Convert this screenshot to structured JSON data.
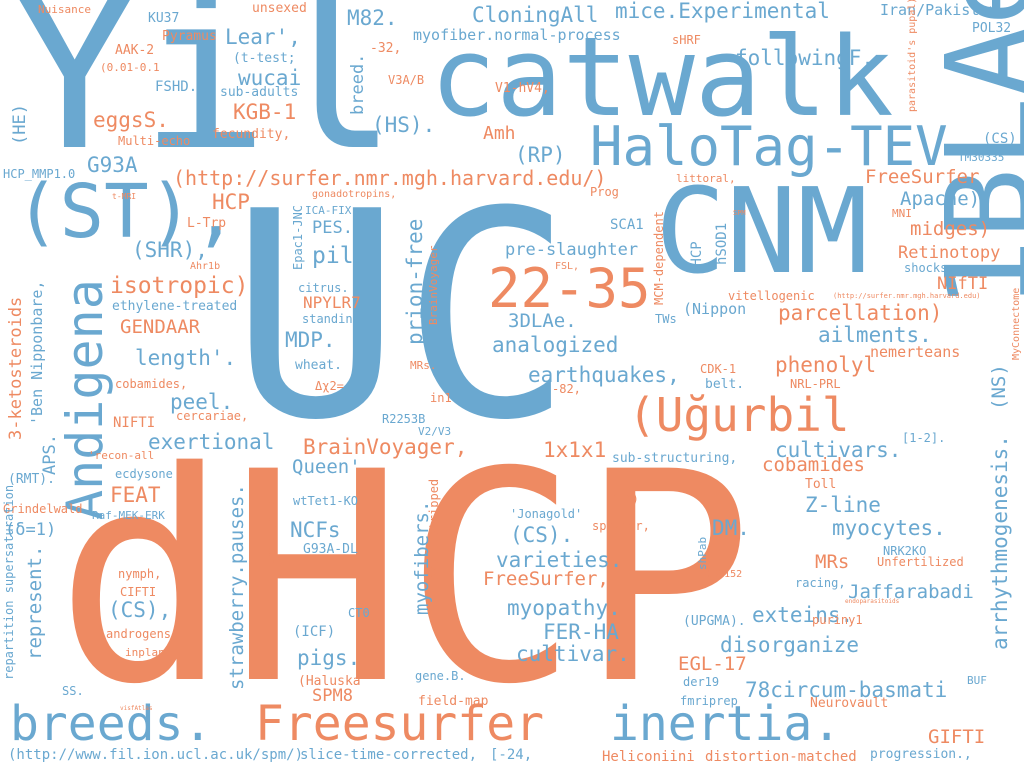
{
  "colors": {
    "blue": "#6aa8d0",
    "orange": "#ee8a62",
    "background": "#ffffff"
  },
  "words": [
    {
      "text": "Yil",
      "color": "blue"
    },
    {
      "text": "UC",
      "color": "blue"
    },
    {
      "text": "dHCP",
      "color": "orange"
    },
    {
      "text": "catwalk",
      "color": "blue"
    },
    {
      "text": "CNM",
      "color": "blue"
    },
    {
      "text": "1BLAe.",
      "color": "blue"
    },
    {
      "text": "(ST),",
      "color": "blue"
    },
    {
      "text": "Andigena",
      "color": "blue"
    },
    {
      "text": "HaloTag-TEV",
      "color": "blue"
    },
    {
      "text": "breeds.",
      "color": "blue"
    },
    {
      "text": "Freesurfer",
      "color": "orange"
    },
    {
      "text": "inertia.",
      "color": "blue"
    },
    {
      "text": "22-35",
      "color": "orange"
    },
    {
      "text": "(Uğurbil",
      "color": "orange"
    },
    {
      "text": "(http://surfer.nmr.mgh.harvard.edu/)",
      "color": "orange"
    },
    {
      "text": "CloningAll",
      "color": "blue"
    },
    {
      "text": "mice.Experimental",
      "color": "blue"
    },
    {
      "text": "followingF.",
      "color": "blue"
    },
    {
      "text": "M82.",
      "color": "blue"
    },
    {
      "text": "Lear',",
      "color": "blue"
    },
    {
      "text": "wucai",
      "color": "blue"
    },
    {
      "text": "KGB-1",
      "color": "orange"
    },
    {
      "text": "eggsS.",
      "color": "orange"
    },
    {
      "text": "(HS).",
      "color": "blue"
    },
    {
      "text": "G93A",
      "color": "blue"
    },
    {
      "text": "(RP)",
      "color": "blue"
    },
    {
      "text": "Amh",
      "color": "orange"
    },
    {
      "text": "HCP",
      "color": "orange"
    },
    {
      "text": "(SHR),",
      "color": "blue"
    },
    {
      "text": "PES.",
      "color": "blue"
    },
    {
      "text": "pilo",
      "color": "blue"
    },
    {
      "text": "isotropic)",
      "color": "orange"
    },
    {
      "text": "GENDAAR",
      "color": "orange"
    },
    {
      "text": "length'.",
      "color": "blue"
    },
    {
      "text": "MDP.",
      "color": "blue"
    },
    {
      "text": "peel.",
      "color": "blue"
    },
    {
      "text": "exertional",
      "color": "blue"
    },
    {
      "text": "BrainVoyager,",
      "color": "orange"
    },
    {
      "text": "Queen'",
      "color": "blue"
    },
    {
      "text": "FEAT",
      "color": "orange"
    },
    {
      "text": "NCFs",
      "color": "blue"
    },
    {
      "text": "(CS),",
      "color": "blue"
    },
    {
      "text": "pigs.",
      "color": "blue"
    },
    {
      "text": "SPM8",
      "color": "orange"
    },
    {
      "text": "3DLAe.",
      "color": "blue"
    },
    {
      "text": "analogized",
      "color": "blue"
    },
    {
      "text": "earthquakes,",
      "color": "blue"
    },
    {
      "text": "pre-slaughter",
      "color": "blue"
    },
    {
      "text": "prion-free",
      "color": "blue"
    },
    {
      "text": "1x1x1",
      "color": "orange"
    },
    {
      "text": "(CS).",
      "color": "blue"
    },
    {
      "text": "varieties.",
      "color": "blue"
    },
    {
      "text": "FreeSurfer,",
      "color": "orange"
    },
    {
      "text": "myopathy.",
      "color": "blue"
    },
    {
      "text": "FER-HA",
      "color": "blue"
    },
    {
      "text": "cultivar.",
      "color": "blue"
    },
    {
      "text": "myofibers.",
      "color": "blue"
    },
    {
      "text": "DM.",
      "color": "blue"
    },
    {
      "text": "Z-line",
      "color": "blue"
    },
    {
      "text": "myocytes.",
      "color": "blue"
    },
    {
      "text": "MRs",
      "color": "orange"
    },
    {
      "text": "cobamides",
      "color": "orange"
    },
    {
      "text": "cultivars.",
      "color": "blue"
    },
    {
      "text": "phenolyl",
      "color": "orange"
    },
    {
      "text": "ailments.",
      "color": "blue"
    },
    {
      "text": "parcellation)",
      "color": "orange"
    },
    {
      "text": "exteins.",
      "color": "blue"
    },
    {
      "text": "disorganize",
      "color": "blue"
    },
    {
      "text": "78circum-basmati",
      "color": "blue"
    },
    {
      "text": "EGL-17",
      "color": "orange"
    },
    {
      "text": "Jaffarabadi",
      "color": "blue"
    },
    {
      "text": "GIFTI",
      "color": "orange"
    },
    {
      "text": "arrhythmogenesis.",
      "color": "blue"
    },
    {
      "text": "(NS)",
      "color": "blue"
    },
    {
      "text": "FreeSurfer",
      "color": "orange"
    },
    {
      "text": "Apache)",
      "color": "blue"
    },
    {
      "text": "midges)",
      "color": "orange"
    },
    {
      "text": "Retinotopy",
      "color": "orange"
    },
    {
      "text": "NIfTI",
      "color": "orange"
    },
    {
      "text": "nemerteans",
      "color": "orange"
    },
    {
      "text": "Iran/Pakistan",
      "color": "blue"
    },
    {
      "text": "strawberry.pauses.",
      "color": "blue"
    },
    {
      "text": "represent.",
      "color": "blue"
    },
    {
      "text": "3-ketosteroids",
      "color": "orange"
    },
    {
      "text": "'Ben Nipponbare,",
      "color": "blue"
    },
    {
      "text": "APS.",
      "color": "blue"
    },
    {
      "text": "NPYLR7",
      "color": "orange"
    },
    {
      "text": "(http://www.fil.ion.ucl.ac.uk/spm/)",
      "color": "blue"
    },
    {
      "text": "slice-time-corrected,",
      "color": "blue"
    },
    {
      "text": "[-24,",
      "color": "blue"
    },
    {
      "text": "Heliconiini",
      "color": "orange"
    },
    {
      "text": "distortion-matched",
      "color": "orange"
    },
    {
      "text": "progression.,",
      "color": "blue"
    },
    {
      "text": "myofiber.normal-process",
      "color": "blue"
    },
    {
      "text": "Nuisance",
      "color": "orange"
    },
    {
      "text": "KU37",
      "color": "blue"
    },
    {
      "text": "unsexed",
      "color": "orange"
    },
    {
      "text": "Pyramus",
      "color": "orange"
    },
    {
      "text": "AAK-2",
      "color": "orange"
    },
    {
      "text": "(0.01-0.1",
      "color": "orange"
    },
    {
      "text": "FSHD.",
      "color": "blue"
    },
    {
      "text": "(t-test;",
      "color": "blue"
    },
    {
      "text": "sub-adults",
      "color": "blue"
    },
    {
      "text": "fecundity,",
      "color": "orange"
    },
    {
      "text": "Multi-echo",
      "color": "orange"
    },
    {
      "text": "(HE)",
      "color": "blue"
    },
    {
      "text": "HCP_MMP1.0",
      "color": "blue"
    },
    {
      "text": "breed.",
      "color": "blue"
    },
    {
      "text": "-32,",
      "color": "orange"
    },
    {
      "text": "V3A/B",
      "color": "orange"
    },
    {
      "text": "V1-hV4,",
      "color": "orange"
    },
    {
      "text": "sHRF",
      "color": "orange"
    },
    {
      "text": "POL32",
      "color": "blue"
    },
    {
      "text": "parasitoid's pupal)",
      "color": "orange"
    },
    {
      "text": "(CS)",
      "color": "blue"
    },
    {
      "text": "TM30335",
      "color": "blue"
    },
    {
      "text": "littoral,",
      "color": "orange"
    },
    {
      "text": "Prog",
      "color": "orange"
    },
    {
      "text": "gonadotropins,",
      "color": "orange"
    },
    {
      "text": "ICA-FIX",
      "color": "blue"
    },
    {
      "text": "t-MRI",
      "color": "orange"
    },
    {
      "text": "L-Trp",
      "color": "orange"
    },
    {
      "text": "Epac1-JNC",
      "color": "blue"
    },
    {
      "text": "BrainVoyager",
      "color": "orange"
    },
    {
      "text": "SCA1",
      "color": "blue"
    },
    {
      "text": "(HCP",
      "color": "blue"
    },
    {
      "text": "MCM-dependent",
      "color": "orange"
    },
    {
      "text": "hSOD1",
      "color": "blue"
    },
    {
      "text": "FSL,",
      "color": "orange"
    },
    {
      "text": "SPM",
      "color": "orange"
    },
    {
      "text": "MNI",
      "color": "orange"
    },
    {
      "text": "shocks.",
      "color": "blue"
    },
    {
      "text": "Ahr1b",
      "color": "orange"
    },
    {
      "text": "citrus.",
      "color": "blue"
    },
    {
      "text": "ethylene-treated",
      "color": "blue"
    },
    {
      "text": "(http://surfer.nmr.mgh.harvard.edu)",
      "color": "orange"
    },
    {
      "text": "vitellogenic",
      "color": "orange"
    },
    {
      "text": "TWs",
      "color": "blue"
    },
    {
      "text": "(Nippon",
      "color": "blue"
    },
    {
      "text": "MyConnectome",
      "color": "orange"
    },
    {
      "text": "standing.",
      "color": "blue"
    },
    {
      "text": "wheat.",
      "color": "blue"
    },
    {
      "text": "MRs.",
      "color": "orange"
    },
    {
      "text": "Δχ2=",
      "color": "orange"
    },
    {
      "text": "cobamides,",
      "color": "orange"
    },
    {
      "text": "CDK-1",
      "color": "orange"
    },
    {
      "text": "belt.",
      "color": "blue"
    },
    {
      "text": "NRL-PRL",
      "color": "orange"
    },
    {
      "text": "in1",
      "color": "orange"
    },
    {
      "text": "-82,",
      "color": "orange"
    },
    {
      "text": "R2253B",
      "color": "blue"
    },
    {
      "text": "V2/V3",
      "color": "blue"
    },
    {
      "text": "NIFTI",
      "color": "orange"
    },
    {
      "text": "cercariae,",
      "color": "orange"
    },
    {
      "text": "[1-2].",
      "color": "blue"
    },
    {
      "text": "'recon-all",
      "color": "orange"
    },
    {
      "text": "ecdysone",
      "color": "blue"
    },
    {
      "text": "(RMT).",
      "color": "blue"
    },
    {
      "text": "Grindelwald",
      "color": "orange"
    },
    {
      "text": "Raf-MEK-ERK",
      "color": "blue"
    },
    {
      "text": "protonymphs.",
      "color": "orange"
    },
    {
      "text": "wtTet1-KO",
      "color": "blue"
    },
    {
      "text": "skull-stripped",
      "color": "orange"
    },
    {
      "text": "sub-structuring,",
      "color": "blue"
    },
    {
      "text": "Toll",
      "color": "orange"
    },
    {
      "text": "'Jonagold'",
      "color": "blue"
    },
    {
      "text": "OFA)",
      "color": "orange"
    },
    {
      "text": "spawner,",
      "color": "orange"
    },
    {
      "text": "(δ=1)",
      "color": "blue"
    },
    {
      "text": "G93A-DL",
      "color": "blue"
    },
    {
      "text": "shPab",
      "color": "blue"
    },
    {
      "text": "ICBM152",
      "color": "orange"
    },
    {
      "text": "NRK2KO",
      "color": "blue"
    },
    {
      "text": "Unfertilized",
      "color": "orange"
    },
    {
      "text": "nymph,",
      "color": "orange"
    },
    {
      "text": "CIFTI",
      "color": "orange"
    },
    {
      "text": "androgens",
      "color": "orange"
    },
    {
      "text": "inplane",
      "color": "orange"
    },
    {
      "text": "repartition supersaturation",
      "color": "blue"
    },
    {
      "text": "SS.",
      "color": "blue"
    },
    {
      "text": "visfAtlas",
      "color": "orange"
    },
    {
      "text": "CT0",
      "color": "blue"
    },
    {
      "text": "(ICF)",
      "color": "blue"
    },
    {
      "text": "(Haluska",
      "color": "orange"
    },
    {
      "text": "(UPGMA).",
      "color": "blue"
    },
    {
      "text": "racing,",
      "color": "blue"
    },
    {
      "text": "endoparasitoids",
      "color": "orange"
    },
    {
      "text": "puriny1",
      "color": "orange"
    },
    {
      "text": "gene.B.",
      "color": "blue"
    },
    {
      "text": "der19",
      "color": "blue"
    },
    {
      "text": "fmriprep",
      "color": "blue"
    },
    {
      "text": "BUF",
      "color": "blue"
    },
    {
      "text": "Neurovault",
      "color": "orange"
    },
    {
      "text": "field-map",
      "color": "orange"
    }
  ]
}
